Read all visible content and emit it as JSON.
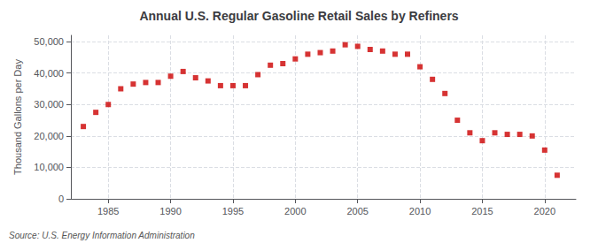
{
  "chart_data": {
    "type": "scatter",
    "title": "Annual U.S. Regular Gasoline Retail Sales by Refiners",
    "ylabel": "Thousand Gallons per Day",
    "annotations": [
      "Source: U.S. Energy Information Administration"
    ],
    "x": [
      1983,
      1984,
      1985,
      1986,
      1987,
      1988,
      1989,
      1990,
      1991,
      1992,
      1993,
      1994,
      1995,
      1996,
      1997,
      1998,
      1999,
      2000,
      2001,
      2002,
      2003,
      2004,
      2005,
      2006,
      2007,
      2008,
      2009,
      2010,
      2011,
      2012,
      2013,
      2014,
      2015,
      2016,
      2017,
      2018,
      2019,
      2020,
      2021
    ],
    "values": [
      23000,
      27500,
      30000,
      35000,
      36500,
      37000,
      37000,
      39000,
      40500,
      38500,
      37500,
      36000,
      36000,
      36000,
      39500,
      42500,
      43000,
      44500,
      46000,
      46500,
      47000,
      49000,
      48500,
      47500,
      47000,
      46000,
      46000,
      42000,
      38000,
      33500,
      25000,
      21000,
      18500,
      21000,
      20500,
      20500,
      20000,
      15500,
      7500
    ],
    "color": "#cc0000",
    "marker": "square",
    "xlim": [
      1982,
      2022.5
    ],
    "xticks": [
      1985,
      1990,
      1995,
      2000,
      2005,
      2010,
      2015,
      2020
    ],
    "ylim": [
      0,
      52000
    ],
    "yticks": [
      0,
      {
        "value": 10000,
        "label": "10,000"
      },
      {
        "value": 20000,
        "label": "20,000"
      },
      {
        "value": 30000,
        "label": "30,000"
      },
      {
        "value": 40000,
        "label": "40,000"
      },
      {
        "value": 50000,
        "label": "50,000"
      }
    ],
    "grid": true
  }
}
